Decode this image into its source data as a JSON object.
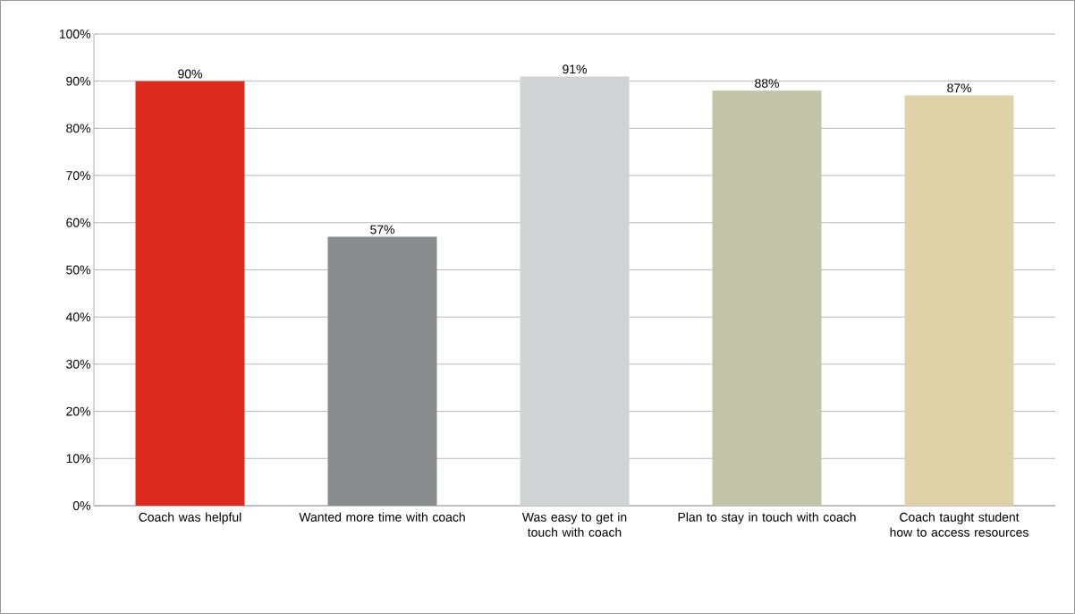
{
  "chart_data": {
    "type": "bar",
    "categories": [
      "Coach was helpful",
      "Wanted more time with coach",
      "Was easy to get in touch with coach",
      "Plan to stay in touch with coach",
      "Coach taught student how to access resources"
    ],
    "values": [
      90,
      57,
      91,
      88,
      87
    ],
    "colors": [
      "#dc2a1e",
      "#898c8d",
      "#d0d3d4",
      "#c2c4a7",
      "#dfd1a8"
    ],
    "value_labels": [
      "90%",
      "57%",
      "91%",
      "88%",
      "87%"
    ],
    "ylim": [
      0,
      100
    ],
    "yticks": [
      {
        "value": 0,
        "label": "0%"
      },
      {
        "value": 10,
        "label": "10%"
      },
      {
        "value": 20,
        "label": "20%"
      },
      {
        "value": 30,
        "label": "30%"
      },
      {
        "value": 40,
        "label": "40%"
      },
      {
        "value": 50,
        "label": "50%"
      },
      {
        "value": 60,
        "label": "60%"
      },
      {
        "value": 70,
        "label": "70%"
      },
      {
        "value": 80,
        "label": "80%"
      },
      {
        "value": 90,
        "label": "90%"
      },
      {
        "value": 100,
        "label": "100%"
      }
    ],
    "grid": "y"
  }
}
